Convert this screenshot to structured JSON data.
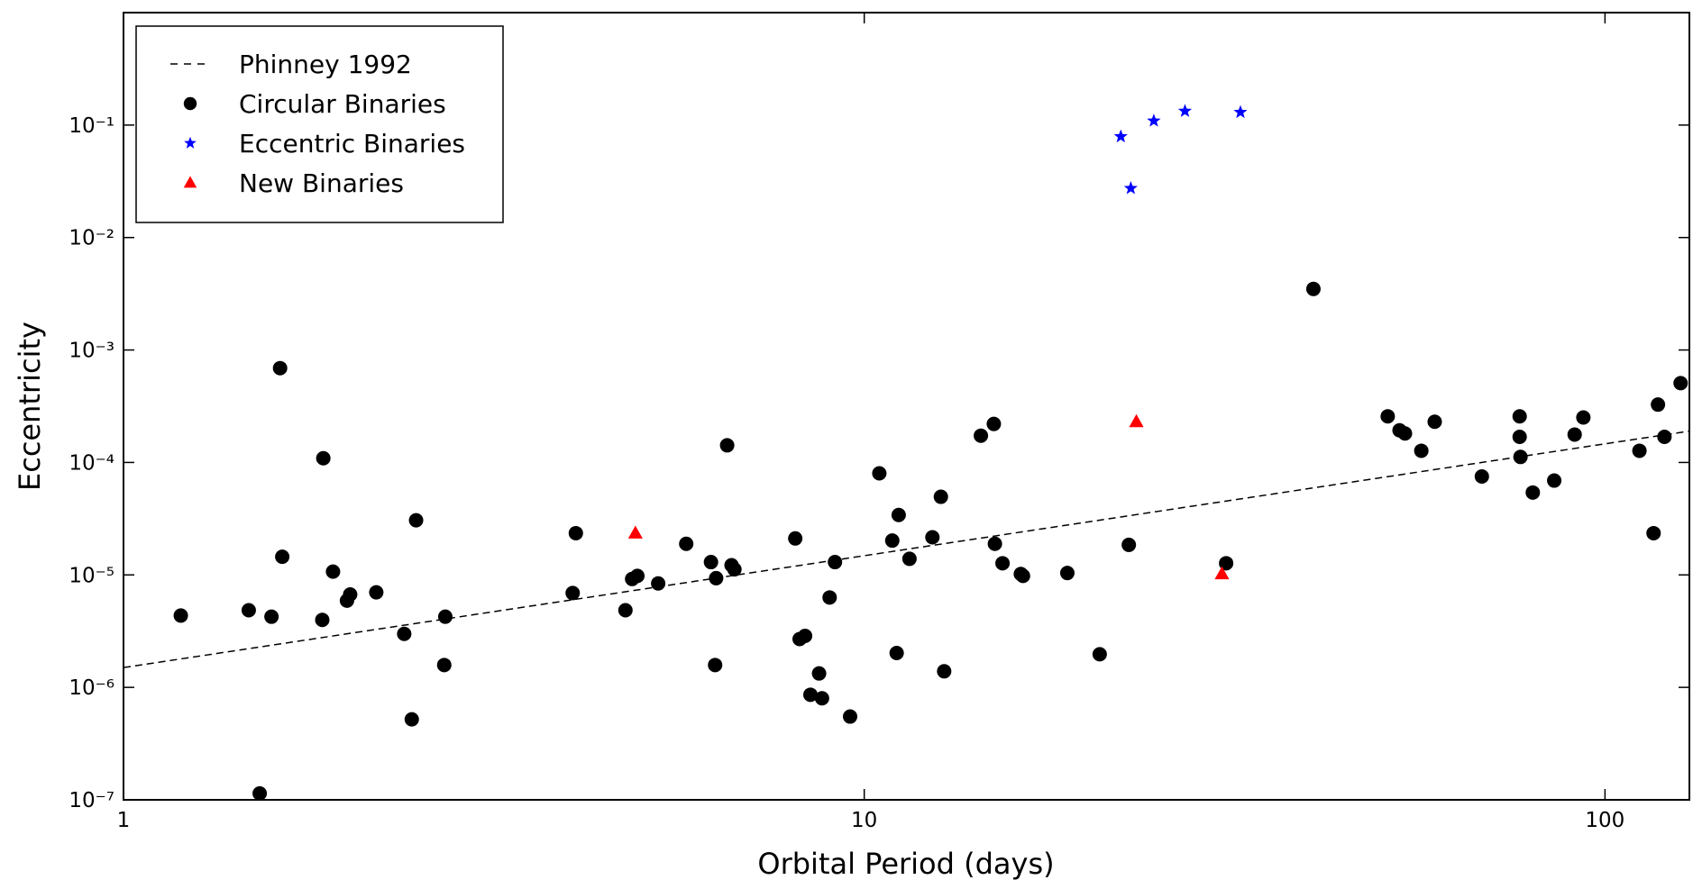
{
  "chart_data": {
    "type": "scatter",
    "x_label": "Orbital Period (days)",
    "y_label": "Eccentricity",
    "x_scale": "log",
    "y_scale": "log",
    "xlim": [
      1,
      130
    ],
    "ylim": [
      1e-07,
      1
    ],
    "xticks": [
      1,
      10,
      100
    ],
    "yticks": [
      {
        "value": 1e-07,
        "label": "10⁻⁷"
      },
      {
        "value": 1e-06,
        "label": "10⁻⁶"
      },
      {
        "value": 1e-05,
        "label": "10⁻⁵"
      },
      {
        "value": 0.0001,
        "label": "10⁻⁴"
      },
      {
        "value": 0.001,
        "label": "10⁻³"
      },
      {
        "value": 0.01,
        "label": "10⁻²"
      },
      {
        "value": 0.1,
        "label": "10⁻¹"
      }
    ],
    "legend": "upper left",
    "series": [
      {
        "name": "Phinney 1992",
        "type": "line",
        "marker": "dashed",
        "color": "#000000",
        "x": [
          1,
          130
        ],
        "values": [
          1.5e-06,
          0.00019
        ]
      },
      {
        "name": "Circular Binaries",
        "type": "scatter",
        "marker": "circle",
        "color": "#000000",
        "x": [
          1.195,
          1.476,
          1.584,
          1.627,
          1.638,
          1.855,
          1.861,
          1.918,
          2.003,
          2.023,
          2.194,
          2.393,
          2.45,
          2.483,
          2.719,
          2.71,
          1.527,
          4.04,
          4.08,
          4.76,
          4.86,
          4.94,
          5.27,
          5.75,
          6.21,
          6.29,
          6.31,
          6.53,
          6.62,
          6.68,
          8.07,
          8.18,
          8.32,
          8.46,
          8.69,
          8.77,
          8.98,
          9.13,
          9.57,
          10.48,
          10.91,
          11.06,
          11.13,
          11.51,
          12.36,
          12.69,
          12.82,
          14.37,
          14.96,
          15.01,
          15.37,
          16.27,
          16.38,
          18.8,
          20.79,
          22.76,
          30.8,
          40.4,
          50.9,
          52.8,
          53.7,
          56.5,
          58.9,
          68.2,
          76.7,
          76.7,
          76.9,
          79.9,
          85.4,
          91.0,
          93.5,
          111.3,
          116.3,
          117.9,
          120.3,
          126.5
        ],
        "values": [
          4.35e-06,
          4.85e-06,
          4.25e-06,
          0.00069,
          1.45e-05,
          3.98e-06,
          0.000109,
          1.07e-05,
          5.9e-06,
          6.7e-06,
          7e-06,
          2.99e-06,
          5.2e-07,
          3.06e-05,
          4.25e-06,
          1.58e-06,
          1.14e-07,
          6.9e-06,
          2.35e-05,
          4.85e-06,
          9.2e-06,
          9.8e-06,
          8.4e-06,
          1.89e-05,
          1.3e-05,
          1.58e-06,
          9.35e-06,
          0.000142,
          1.22e-05,
          1.12e-05,
          2.11e-05,
          2.69e-06,
          2.87e-06,
          8.6e-07,
          1.33e-06,
          8e-07,
          6.3e-06,
          1.3e-05,
          5.5e-07,
          8e-05,
          2.02e-05,
          2.02e-06,
          3.41e-05,
          1.39e-05,
          2.16e-05,
          4.95e-05,
          1.39e-06,
          0.000173,
          0.00022,
          1.89e-05,
          1.27e-05,
          1.02e-05,
          9.8e-06,
          1.04e-05,
          1.97e-06,
          1.85e-05,
          1.27e-05,
          0.00349,
          0.000257,
          0.000193,
          0.000181,
          0.000127,
          0.00023,
          7.5e-05,
          0.000257,
          0.000169,
          0.000112,
          5.4e-05,
          6.9e-05,
          0.000177,
          0.000251,
          0.000127,
          2.35e-05,
          0.000327,
          0.000169,
          0.000507
        ]
      },
      {
        "name": "Eccentric Binaries",
        "type": "scatter",
        "marker": "star",
        "color": "#0000ff",
        "x": [
          22.2,
          22.9,
          24.6,
          27.1,
          32.2
        ],
        "values": [
          0.079,
          0.0274,
          0.109,
          0.133,
          0.13
        ]
      },
      {
        "name": "New Binaries",
        "type": "scatter",
        "marker": "triangle",
        "color": "#ff0000",
        "x": [
          4.91,
          23.3,
          30.4
        ],
        "values": [
          2.35e-05,
          0.00023,
          1.02e-05
        ]
      }
    ]
  }
}
